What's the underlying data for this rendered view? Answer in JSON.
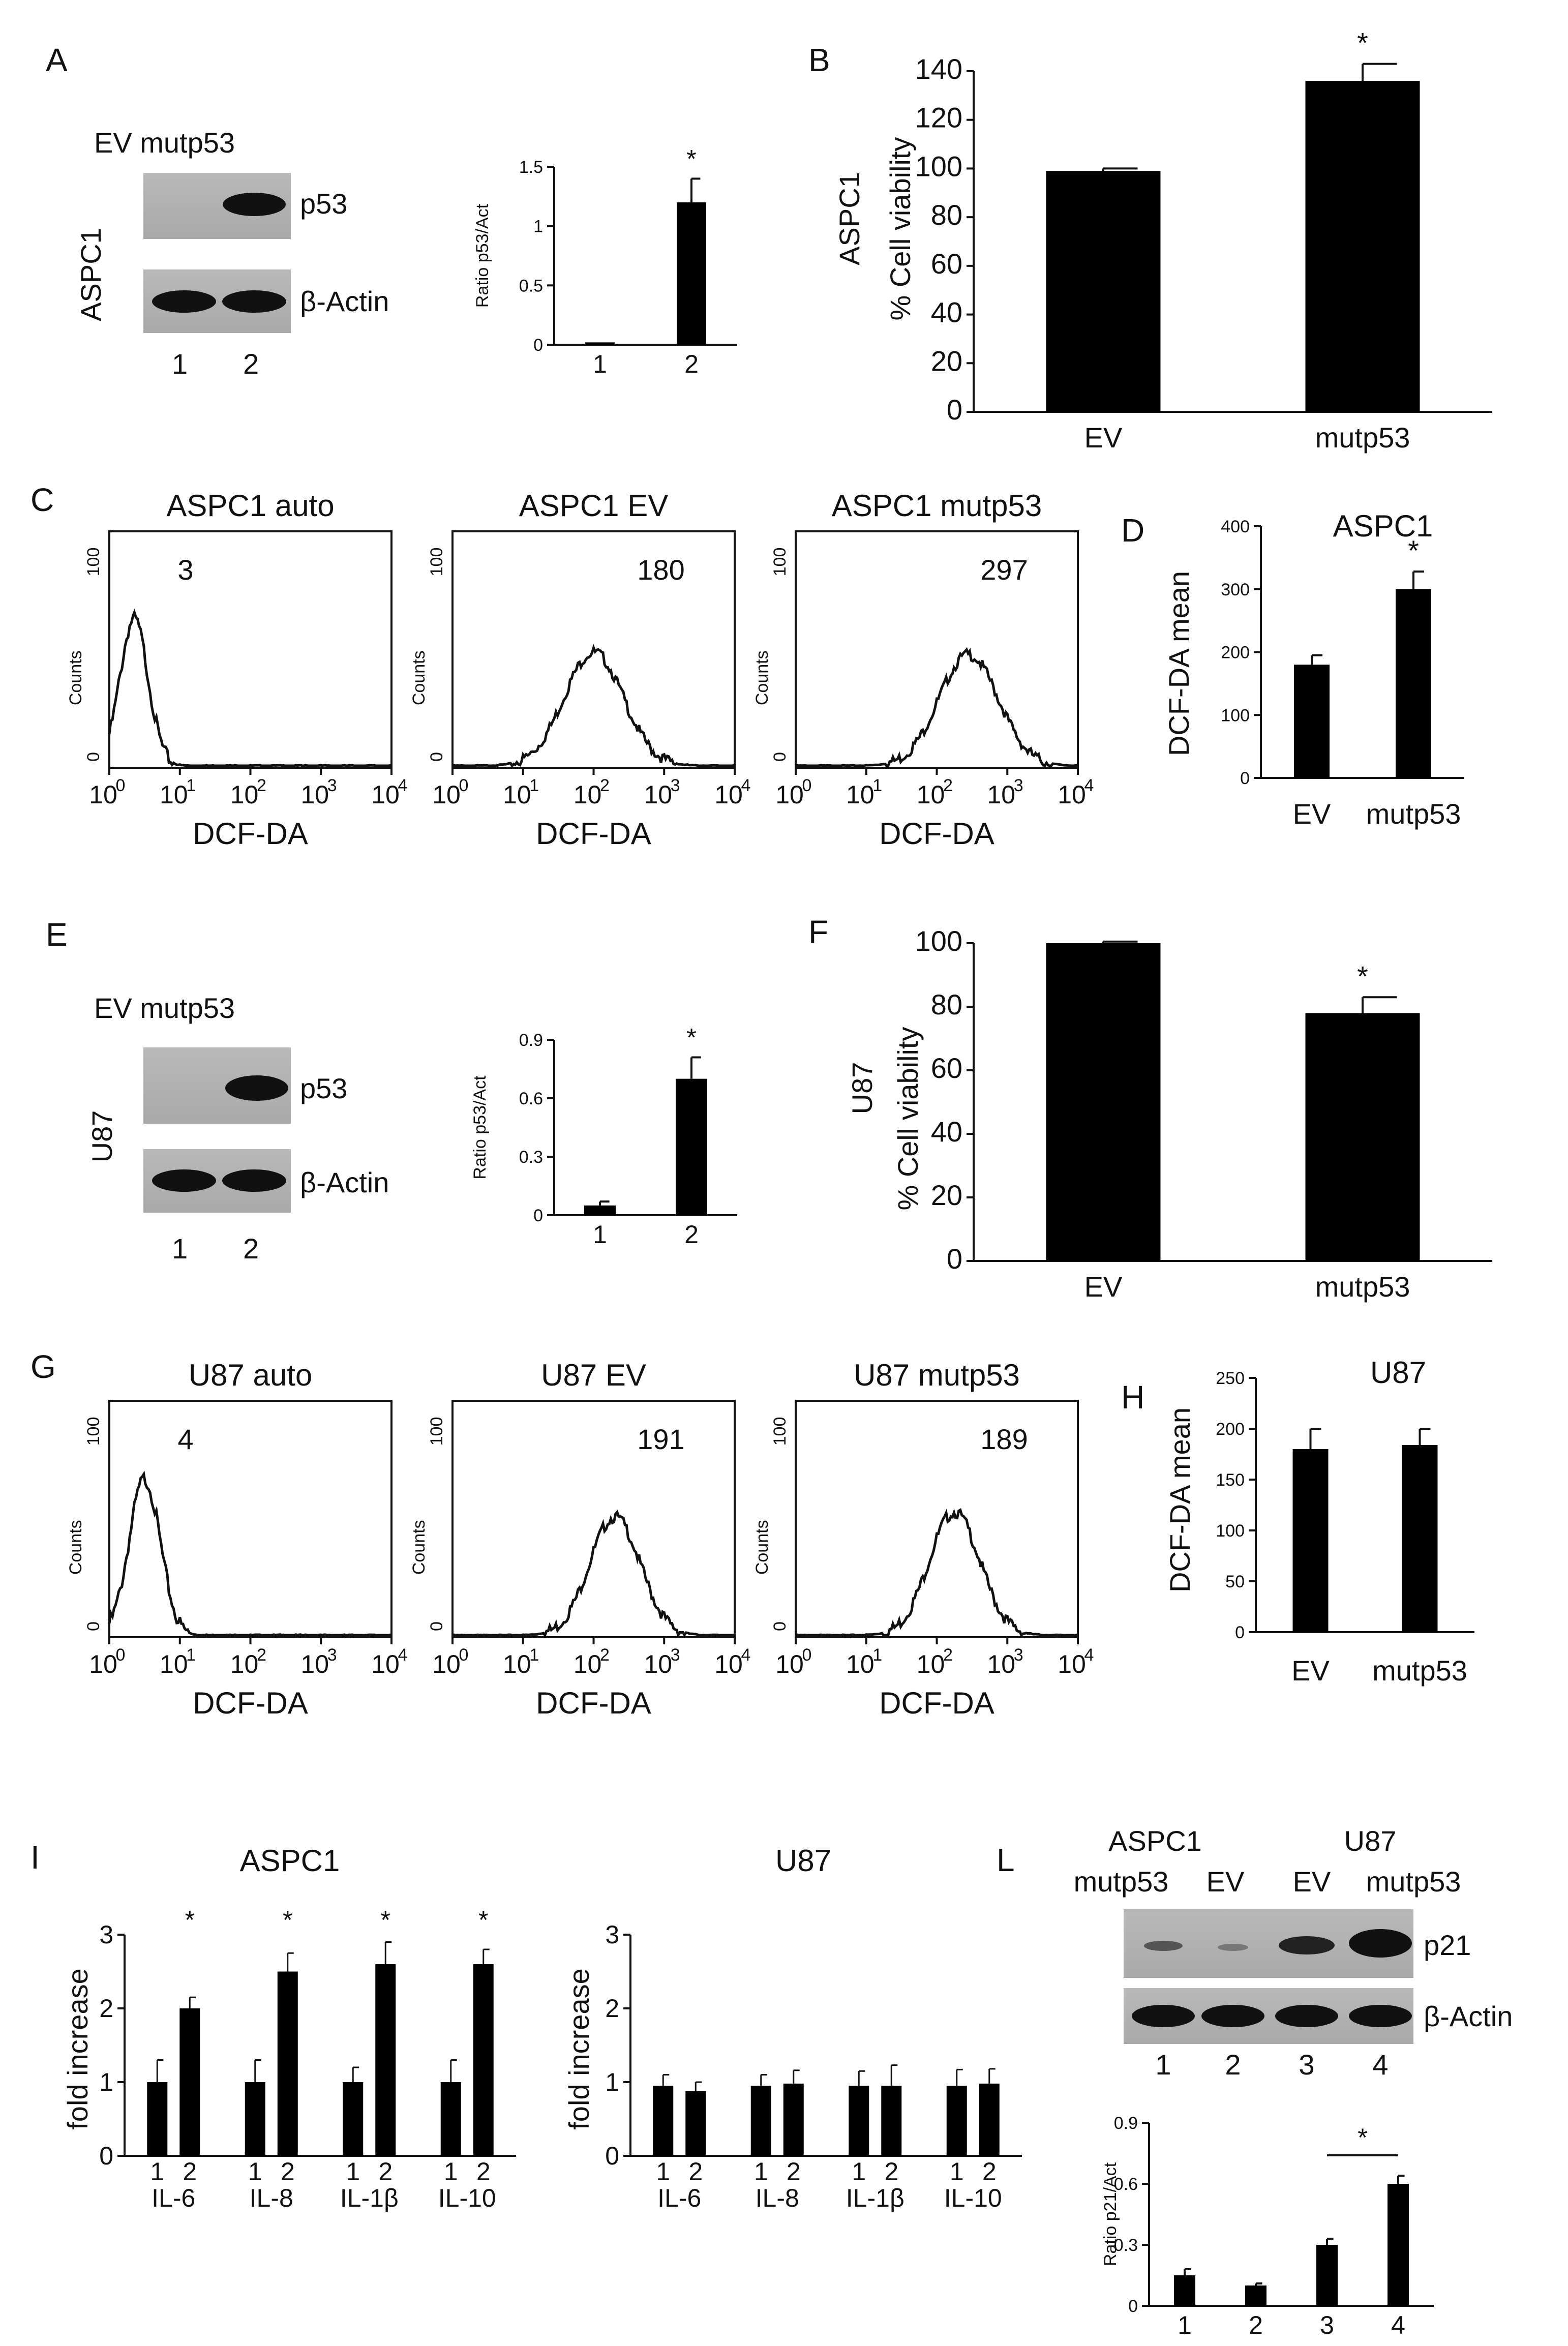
{
  "panels": {
    "A": {
      "letter": "A",
      "lanes_header": "EV mutp53",
      "cell_line": "ASPC1",
      "band_labels": [
        "p53",
        "β-Actin"
      ],
      "lane_numbers": [
        "1",
        "2"
      ],
      "chart": {
        "type": "bar",
        "ylabel": "Ratio p53/Act",
        "categories": [
          "1",
          "2"
        ],
        "values": [
          0.02,
          1.2
        ],
        "errors": [
          0.0,
          0.2
        ],
        "ylim": [
          0,
          1.5
        ],
        "yticks": [
          "0",
          "0.5",
          "1",
          "1.5"
        ],
        "significance": [
          "",
          "*"
        ]
      }
    },
    "B": {
      "letter": "B",
      "chart": {
        "type": "bar",
        "ylabel_line1": "ASPC1",
        "ylabel_line2": "% Cell viability",
        "categories": [
          "EV",
          "mutp53"
        ],
        "values": [
          99,
          136
        ],
        "errors": [
          1,
          7
        ],
        "ylim": [
          0,
          140
        ],
        "yticks": [
          "0",
          "20",
          "40",
          "60",
          "80",
          "100",
          "120",
          "140"
        ],
        "significance": [
          "",
          "*"
        ]
      }
    },
    "C": {
      "letter": "C",
      "histograms": [
        {
          "title": "ASPC1 auto",
          "mean_value": "3",
          "peak_log": 0.35,
          "width": 0.2,
          "height": 0.62
        },
        {
          "title": "ASPC1 EV",
          "mean_value": "180",
          "peak_log": 2.0,
          "width": 0.42,
          "height": 0.48
        },
        {
          "title": "ASPC1 mutp53",
          "mean_value": "297",
          "peak_log": 2.45,
          "width": 0.42,
          "height": 0.47
        }
      ],
      "ylabel": "Counts",
      "ytick_bottom": "0",
      "ytick_top": "100",
      "xlabel": "DCF-DA",
      "xticks_base": [
        "10",
        "10",
        "10",
        "10",
        "10"
      ],
      "xticks_exp": [
        "0",
        "1",
        "2",
        "3",
        "4"
      ]
    },
    "D": {
      "letter": "D",
      "chart": {
        "type": "bar",
        "title": "ASPC1",
        "ylabel": "DCF-DA mean",
        "categories": [
          "EV",
          "mutp53"
        ],
        "values": [
          180,
          300
        ],
        "errors": [
          15,
          28
        ],
        "ylim": [
          0,
          400
        ],
        "yticks": [
          "0",
          "100",
          "200",
          "300",
          "400"
        ],
        "significance": [
          "",
          "*"
        ]
      }
    },
    "E": {
      "letter": "E",
      "lanes_header": "EV mutp53",
      "cell_line": "U87",
      "band_labels": [
        "p53",
        "β-Actin"
      ],
      "lane_numbers": [
        "1",
        "2"
      ],
      "chart": {
        "type": "bar",
        "ylabel": "Ratio p53/Act",
        "categories": [
          "1",
          "2"
        ],
        "values": [
          0.05,
          0.7
        ],
        "errors": [
          0.02,
          0.11
        ],
        "ylim": [
          0,
          0.9
        ],
        "yticks": [
          "0",
          "0.3",
          "0.6",
          "0.9"
        ],
        "significance": [
          "",
          "*"
        ]
      }
    },
    "F": {
      "letter": "F",
      "chart": {
        "type": "bar",
        "ylabel_line1": "U87",
        "ylabel_line2": "% Cell viability",
        "categories": [
          "EV",
          "mutp53"
        ],
        "values": [
          100,
          78
        ],
        "errors": [
          0.5,
          5
        ],
        "ylim": [
          0,
          100
        ],
        "yticks": [
          "0",
          "20",
          "40",
          "60",
          "80",
          "100"
        ],
        "significance": [
          "",
          "*"
        ]
      }
    },
    "G": {
      "letter": "G",
      "histograms": [
        {
          "title": "U87 auto",
          "mean_value": "4",
          "peak_log": 0.5,
          "width": 0.22,
          "height": 0.66
        },
        {
          "title": "U87 EV",
          "mean_value": "191",
          "peak_log": 2.3,
          "width": 0.36,
          "height": 0.5
        },
        {
          "title": "U87 mutp53",
          "mean_value": "189",
          "peak_log": 2.25,
          "width": 0.36,
          "height": 0.52
        }
      ],
      "ylabel": "Counts",
      "ytick_bottom": "0",
      "ytick_top": "100",
      "xlabel": "DCF-DA",
      "xticks_base": [
        "10",
        "10",
        "10",
        "10",
        "10"
      ],
      "xticks_exp": [
        "0",
        "1",
        "2",
        "3",
        "4"
      ]
    },
    "H": {
      "letter": "H",
      "chart": {
        "type": "bar",
        "title": "U87",
        "ylabel": "DCF-DA mean",
        "categories": [
          "EV",
          "mutp53"
        ],
        "values": [
          180,
          184
        ],
        "errors": [
          20,
          16
        ],
        "ylim": [
          0,
          250
        ],
        "yticks": [
          "0",
          "50",
          "100",
          "150",
          "200",
          "250"
        ],
        "significance": [
          "",
          ""
        ]
      }
    },
    "I": {
      "letter": "I",
      "charts": [
        {
          "type": "bar",
          "title": "ASPC1",
          "ylabel": "fold increase",
          "groups": [
            "IL-6",
            "IL-8",
            "IL-1β",
            "IL-10"
          ],
          "pair_labels": [
            "1",
            "2"
          ],
          "values": [
            [
              1.0,
              2.0
            ],
            [
              1.0,
              2.5
            ],
            [
              1.0,
              2.6
            ],
            [
              1.0,
              2.6
            ]
          ],
          "errors": [
            [
              0.3,
              0.15
            ],
            [
              0.3,
              0.25
            ],
            [
              0.2,
              0.3
            ],
            [
              0.3,
              0.2
            ]
          ],
          "ylim": [
            0,
            3
          ],
          "yticks": [
            "0",
            "1",
            "2",
            "3"
          ],
          "significance": [
            "*",
            "*",
            "*",
            "*"
          ]
        },
        {
          "type": "bar",
          "title": "U87",
          "ylabel": "fold increase",
          "groups": [
            "IL-6",
            "IL-8",
            "IL-1β",
            "IL-10"
          ],
          "pair_labels": [
            "1",
            "2"
          ],
          "values": [
            [
              0.95,
              0.88
            ],
            [
              0.95,
              0.98
            ],
            [
              0.95,
              0.95
            ],
            [
              0.95,
              0.98
            ]
          ],
          "errors": [
            [
              0.15,
              0.12
            ],
            [
              0.15,
              0.18
            ],
            [
              0.2,
              0.28
            ],
            [
              0.22,
              0.2
            ]
          ],
          "ylim": [
            0,
            3
          ],
          "yticks": [
            "0",
            "1",
            "2",
            "3"
          ],
          "significance": [
            "",
            "",
            "",
            ""
          ]
        }
      ]
    },
    "L": {
      "letter": "L",
      "group_headers": [
        "ASPC1",
        "U87"
      ],
      "lane_headers": [
        "mutp53",
        "EV",
        "EV",
        "mutp53"
      ],
      "band_labels": [
        "p21",
        "β-Actin"
      ],
      "lane_numbers": [
        "1",
        "2",
        "3",
        "4"
      ],
      "chart": {
        "type": "bar",
        "ylabel": "Ratio p21/Act",
        "categories": [
          "1",
          "2",
          "3",
          "4"
        ],
        "values": [
          0.15,
          0.1,
          0.3,
          0.6
        ],
        "errors": [
          0.03,
          0.01,
          0.03,
          0.04
        ],
        "ylim": [
          0,
          0.9
        ],
        "yticks": [
          "0",
          "0.3",
          "0.6",
          "0.9"
        ],
        "significance_bracket": "*"
      }
    }
  }
}
